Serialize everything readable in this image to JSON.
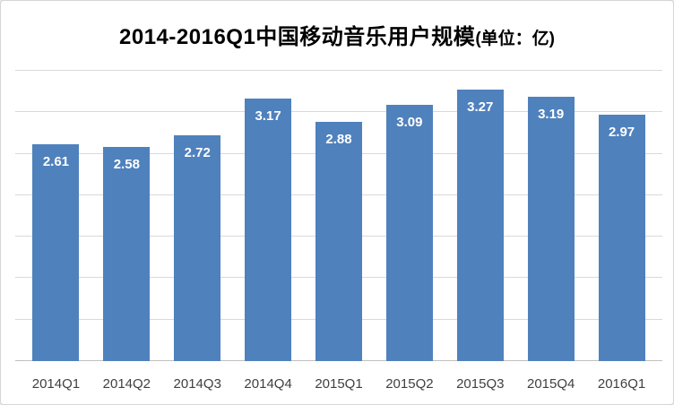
{
  "title": {
    "main": "2014-2016Q1中国移动音乐用户规模",
    "unit": "(单位：亿)"
  },
  "chart_data": {
    "type": "bar",
    "title": "2014-2016Q1中国移动音乐用户规模(单位：亿)",
    "categories": [
      "2014Q1",
      "2014Q2",
      "2014Q3",
      "2014Q4",
      "2015Q1",
      "2015Q2",
      "2015Q3",
      "2015Q4",
      "2016Q1"
    ],
    "values": [
      2.61,
      2.58,
      2.72,
      3.17,
      2.88,
      3.09,
      3.27,
      3.19,
      2.97
    ],
    "xlabel": "",
    "ylabel": "",
    "ylim": [
      0,
      3.5
    ],
    "grid_step": 0.5,
    "grid": true,
    "legend": "none",
    "bar_color": "#4f81bd",
    "value_label_color": "#ffffff"
  }
}
